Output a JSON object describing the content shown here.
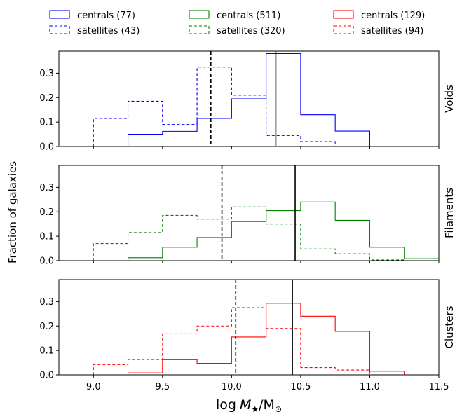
{
  "chart_data": {
    "type": "histogram",
    "bin_edges": [
      8.75,
      9.0,
      9.25,
      9.5,
      9.75,
      10.0,
      10.25,
      10.5,
      10.75,
      11.0,
      11.25,
      11.5
    ],
    "xlim": [
      8.75,
      11.5
    ],
    "ylim": [
      0,
      0.39
    ],
    "x_ticks": [
      "9.0",
      "9.5",
      "10.0",
      "10.5",
      "11.0",
      "11.5"
    ],
    "y_ticks": [
      "0.0",
      "0.1",
      "0.2",
      "0.3"
    ],
    "xlabel_main": "log",
    "xlabel_var": "M",
    "xlabel_star": "★",
    "xlabel_slash": "/M",
    "xlabel_sun": "⊙",
    "ylabel": "Fraction of galaxies",
    "legend": [
      {
        "label": "centrals (77)",
        "color": "#0000ff",
        "style": "solid"
      },
      {
        "label": "satellites (43)",
        "color": "#0000ff",
        "style": "dashed"
      },
      {
        "label": "centrals (511)",
        "color": "#008000",
        "style": "solid"
      },
      {
        "label": "satellites (320)",
        "color": "#008000",
        "style": "dashed"
      },
      {
        "label": "centrals (129)",
        "color": "#ff0000",
        "style": "solid"
      },
      {
        "label": "satellites (94)",
        "color": "#ff0000",
        "style": "dashed"
      }
    ],
    "panels": [
      {
        "name": "Voids",
        "color": "#0000ff",
        "centrals": [
          0,
          0,
          0.05,
          0.062,
          0.115,
          0.195,
          0.38,
          0.13,
          0.063,
          0,
          0
        ],
        "satellites": [
          0,
          0.115,
          0.185,
          0.09,
          0.325,
          0.21,
          0.045,
          0.02,
          0,
          0,
          0
        ],
        "median_centrals": 10.32,
        "median_satellites": 9.85
      },
      {
        "name": "Filaments",
        "color": "#008000",
        "centrals": [
          0,
          0,
          0.012,
          0.055,
          0.095,
          0.16,
          0.205,
          0.24,
          0.165,
          0.055,
          0.008
        ],
        "satellites": [
          0,
          0.07,
          0.115,
          0.185,
          0.17,
          0.22,
          0.15,
          0.048,
          0.028,
          0.003,
          0
        ],
        "median_centrals": 10.46,
        "median_satellites": 9.93
      },
      {
        "name": "Clusters",
        "color": "#ff0000",
        "centrals": [
          0,
          0,
          0.008,
          0.062,
          0.047,
          0.155,
          0.293,
          0.24,
          0.178,
          0.015,
          0
        ],
        "satellites": [
          0,
          0.042,
          0.063,
          0.168,
          0.2,
          0.275,
          0.19,
          0.03,
          0.02,
          0,
          0
        ],
        "median_centrals": 10.44,
        "median_satellites": 10.03
      }
    ]
  }
}
